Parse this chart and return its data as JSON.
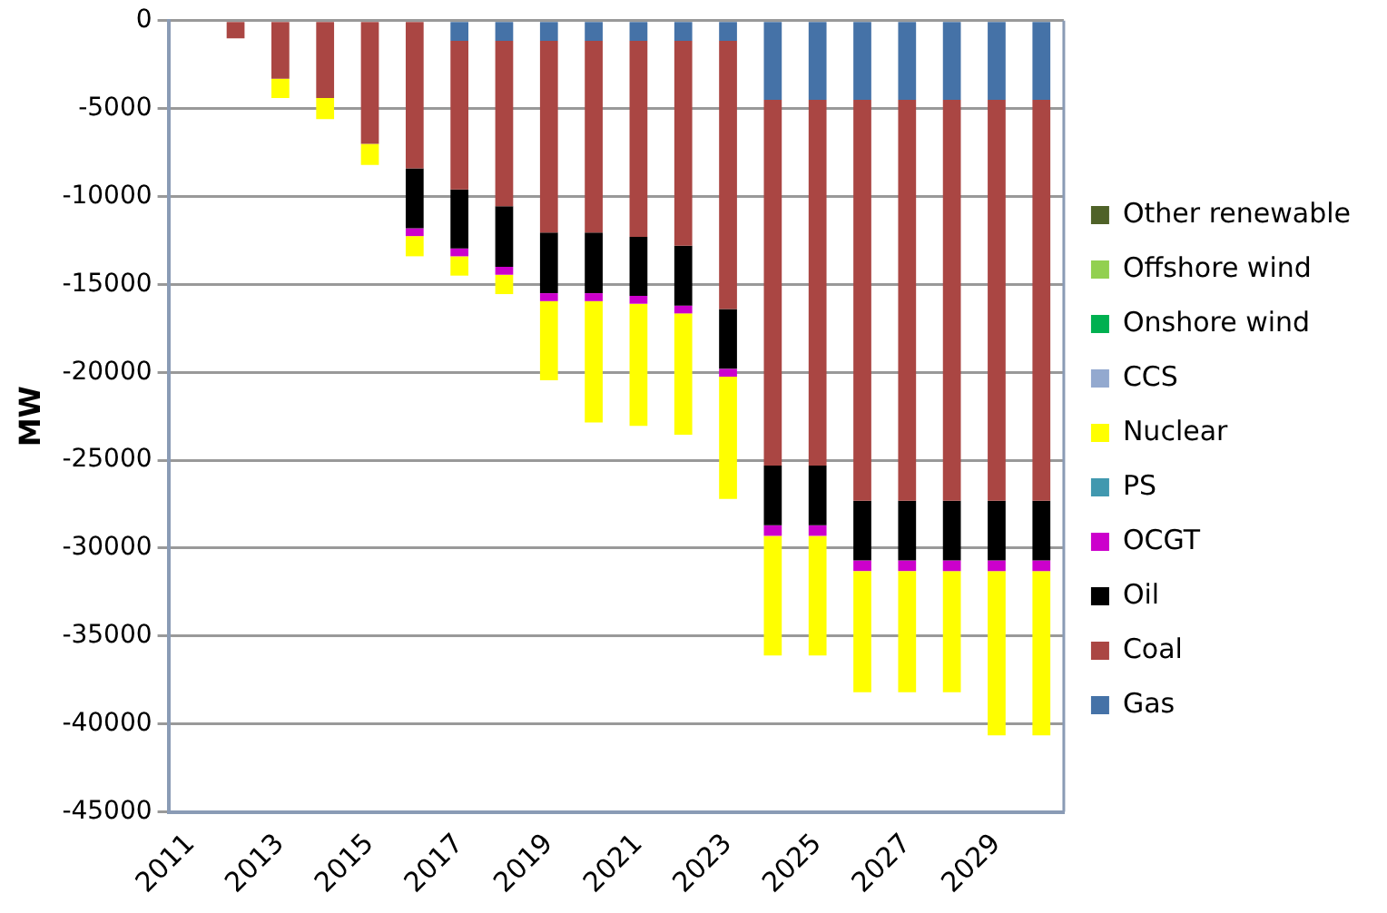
{
  "chart_data": {
    "type": "bar",
    "stacked": true,
    "ylabel": "MW",
    "categories": [
      "2011",
      null,
      "2013",
      null,
      "2015",
      null,
      "2017",
      null,
      "2019",
      null,
      "2021",
      null,
      "2023",
      null,
      "2025",
      null,
      "2027",
      null,
      "2029",
      null
    ],
    "ylim": [
      -45000,
      0
    ],
    "yticks": [
      -45000,
      -40000,
      -35000,
      -30000,
      -25000,
      -20000,
      -15000,
      -10000,
      -5000,
      0
    ],
    "grid": "y",
    "legend": "right",
    "series": [
      {
        "name": "Gas",
        "color": "#4572a7",
        "values": [
          0,
          0,
          0,
          0,
          0,
          0,
          -1150,
          -1150,
          -1150,
          -1150,
          -1150,
          -1150,
          -1150,
          -4500,
          -4500,
          -4500,
          -4500,
          -4500,
          -4500,
          -4500
        ]
      },
      {
        "name": "Coal",
        "color": "#aa4643",
        "values": [
          0,
          -1000,
          -3300,
          -4400,
          -7000,
          -8400,
          -8450,
          -9400,
          -10900,
          -10900,
          -11150,
          -11650,
          -15250,
          -20800,
          -20800,
          -22800,
          -22800,
          -22800,
          -22800,
          -22800
        ]
      },
      {
        "name": "Oil",
        "color": "#000000",
        "values": [
          0,
          0,
          0,
          0,
          0,
          -3400,
          -3350,
          -3450,
          -3450,
          -3450,
          -3350,
          -3400,
          -3400,
          -3400,
          -3400,
          -3400,
          -3400,
          -3400,
          -3400,
          -3400
        ]
      },
      {
        "name": "OCGT",
        "color": "#cc00cc",
        "values": [
          0,
          0,
          0,
          0,
          0,
          -450,
          -450,
          -450,
          -450,
          -450,
          -450,
          -450,
          -450,
          -600,
          -600,
          -600,
          -600,
          -600,
          -600,
          -600
        ]
      },
      {
        "name": "PS",
        "color": "#4198af",
        "values": [
          0,
          0,
          0,
          0,
          0,
          0,
          0,
          0,
          0,
          0,
          0,
          0,
          0,
          0,
          0,
          0,
          0,
          0,
          0,
          0
        ]
      },
      {
        "name": "Nuclear",
        "color": "#ffff00",
        "values": [
          0,
          0,
          -1100,
          -1200,
          -1200,
          -1150,
          -1100,
          -1100,
          -4500,
          -6900,
          -6950,
          -6900,
          -6950,
          -6800,
          -6800,
          -6900,
          -6900,
          -6900,
          -9350,
          -9350
        ]
      },
      {
        "name": "CCS",
        "color": "#93a9cf",
        "values": [
          0,
          0,
          0,
          0,
          0,
          0,
          0,
          0,
          0,
          0,
          0,
          0,
          0,
          0,
          0,
          0,
          0,
          0,
          0,
          0
        ]
      },
      {
        "name": "Onshore wind",
        "color": "#00b050",
        "values": [
          0,
          0,
          0,
          0,
          0,
          0,
          0,
          0,
          0,
          0,
          0,
          0,
          0,
          0,
          0,
          0,
          0,
          0,
          0,
          0
        ]
      },
      {
        "name": "Offshore wind",
        "color": "#92d050",
        "values": [
          0,
          0,
          0,
          0,
          0,
          0,
          0,
          0,
          0,
          0,
          0,
          0,
          0,
          0,
          0,
          0,
          0,
          0,
          0,
          0
        ]
      },
      {
        "name": "Other renewable",
        "color": "#4f6228",
        "values": [
          0,
          0,
          0,
          0,
          0,
          0,
          0,
          0,
          0,
          0,
          0,
          0,
          0,
          0,
          0,
          0,
          0,
          0,
          0,
          0
        ]
      }
    ]
  }
}
